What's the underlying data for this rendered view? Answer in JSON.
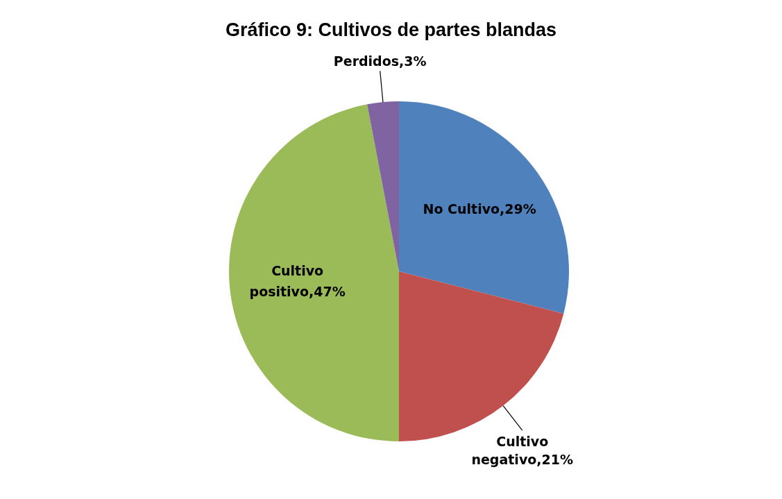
{
  "chart_data": {
    "type": "pie",
    "title": "Gráfico 9: Cultivos de partes blandas",
    "categories": [
      "No Cultivo",
      "Cultivo negativo",
      "Cultivo positivo",
      "Perdidos"
    ],
    "values": [
      29,
      21,
      47,
      3
    ],
    "colors": [
      "#4f81bd",
      "#c0504d",
      "#9bbb59",
      "#8064a2"
    ],
    "value_labels": [
      "29%",
      "21%",
      "47%",
      "3%"
    ],
    "legend": false
  }
}
